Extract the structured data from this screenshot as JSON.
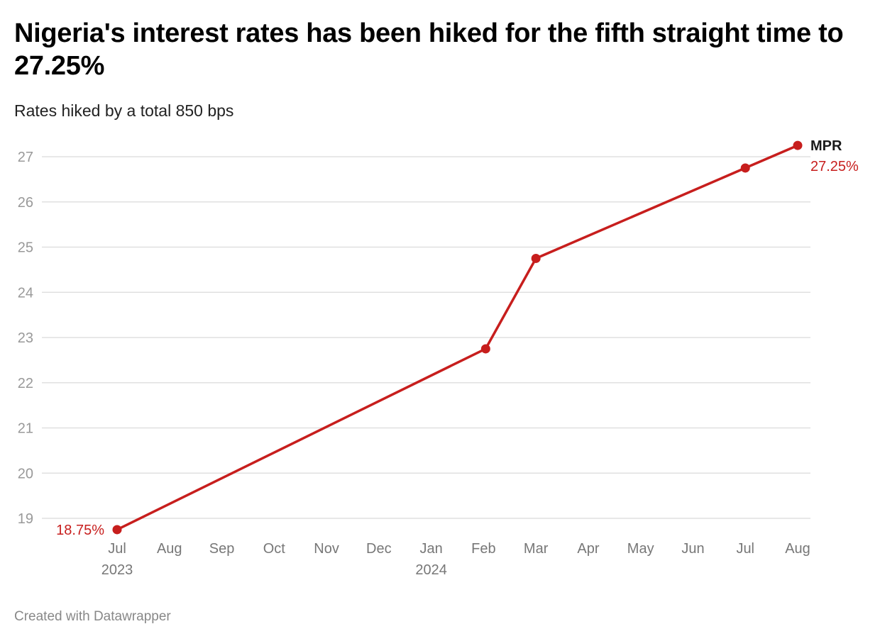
{
  "header": {
    "title": "Nigeria's interest rates has been hiked for the fifth straight time to 27.25%",
    "subtitle": "Rates hiked by a total 850 bps"
  },
  "footer": {
    "credit": "Created with Datawrapper"
  },
  "colors": {
    "series": "#c71e1d",
    "grid": "#e0e0e0",
    "ytick": "#999999",
    "xtick": "#777777"
  },
  "chart_data": {
    "type": "line",
    "title": "Nigeria's interest rates has been hiked for the fifth straight time to 27.25%",
    "subtitle": "Rates hiked by a total 850 bps",
    "xlabel": "",
    "ylabel": "",
    "ylim": [
      18.75,
      27.25
    ],
    "xlim_months_since_jul_2023": [
      0,
      13
    ],
    "grid": true,
    "y_ticks": [
      19,
      20,
      21,
      22,
      23,
      24,
      25,
      26,
      27
    ],
    "x_ticks": [
      {
        "label": "Jul",
        "year": "2023",
        "pos": 0
      },
      {
        "label": "Aug",
        "year": "",
        "pos": 1
      },
      {
        "label": "Sep",
        "year": "",
        "pos": 2
      },
      {
        "label": "Oct",
        "year": "",
        "pos": 3
      },
      {
        "label": "Nov",
        "year": "",
        "pos": 4
      },
      {
        "label": "Dec",
        "year": "",
        "pos": 5
      },
      {
        "label": "Jan",
        "year": "2024",
        "pos": 6
      },
      {
        "label": "Feb",
        "year": "",
        "pos": 7
      },
      {
        "label": "Mar",
        "year": "",
        "pos": 8
      },
      {
        "label": "Apr",
        "year": "",
        "pos": 9
      },
      {
        "label": "May",
        "year": "",
        "pos": 10
      },
      {
        "label": "Jun",
        "year": "",
        "pos": 11
      },
      {
        "label": "Jul",
        "year": "",
        "pos": 12
      },
      {
        "label": "Aug",
        "year": "",
        "pos": 13
      }
    ],
    "series": [
      {
        "name": "MPR",
        "color": "#c71e1d",
        "points": [
          {
            "date": "Jul 2023",
            "x": 0,
            "y": 18.75
          },
          {
            "date": "Feb 2024",
            "x": 7.04,
            "y": 22.75
          },
          {
            "date": "Mar 2024",
            "x": 8.0,
            "y": 24.75
          },
          {
            "date": "Jul 2024",
            "x": 12.0,
            "y": 26.75
          },
          {
            "date": "Aug 2024",
            "x": 13.0,
            "y": 27.25
          }
        ]
      }
    ],
    "annotations": {
      "start_label": "18.75%",
      "end_series_label": "MPR",
      "end_value_label": "27.25%"
    }
  }
}
